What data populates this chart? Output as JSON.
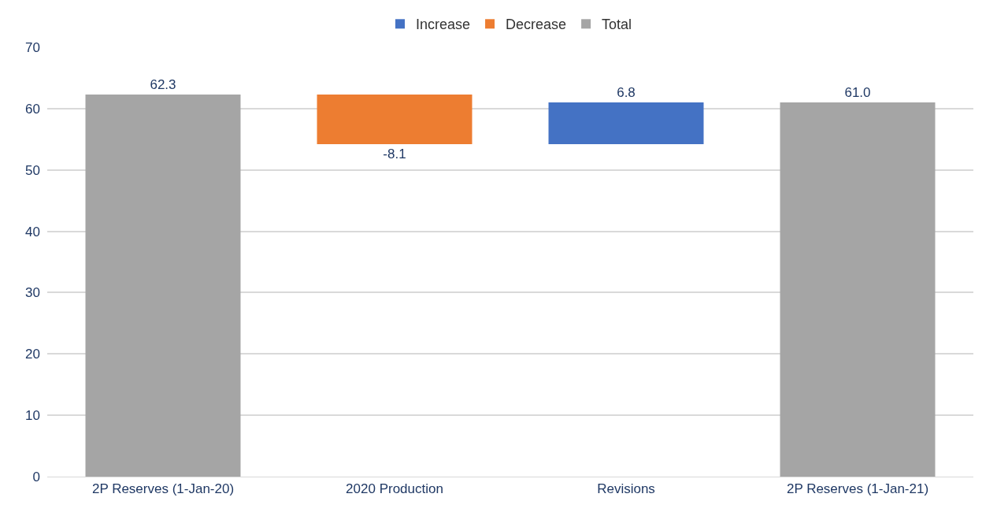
{
  "chart_data": {
    "type": "bar",
    "categories": [
      "2P Reserves (1-Jan-20)",
      "2020 Production",
      "Revisions",
      "2P Reserves (1-Jan-21)"
    ],
    "series": [
      {
        "name": "Increase",
        "color": "#4472c4",
        "base": [
          null,
          null,
          54.2,
          null
        ],
        "values": [
          null,
          null,
          6.8,
          null
        ],
        "value_labels": [
          null,
          null,
          "6.8",
          null
        ]
      },
      {
        "name": "Decrease",
        "color": "#ed7d31",
        "base": [
          null,
          62.3,
          null,
          null
        ],
        "values": [
          null,
          -8.1,
          null,
          null
        ],
        "value_labels": [
          null,
          "-8.1",
          null,
          null
        ]
      },
      {
        "name": "Total",
        "color": "#a5a5a5",
        "base": [
          0,
          null,
          null,
          0
        ],
        "values": [
          62.3,
          null,
          null,
          61.0
        ],
        "value_labels": [
          "62.3",
          null,
          null,
          "61.0"
        ]
      }
    ],
    "ylim": [
      0,
      70
    ],
    "yticks": [
      0,
      10,
      20,
      30,
      40,
      50,
      60,
      70
    ],
    "grid": "y",
    "legend": "top"
  }
}
